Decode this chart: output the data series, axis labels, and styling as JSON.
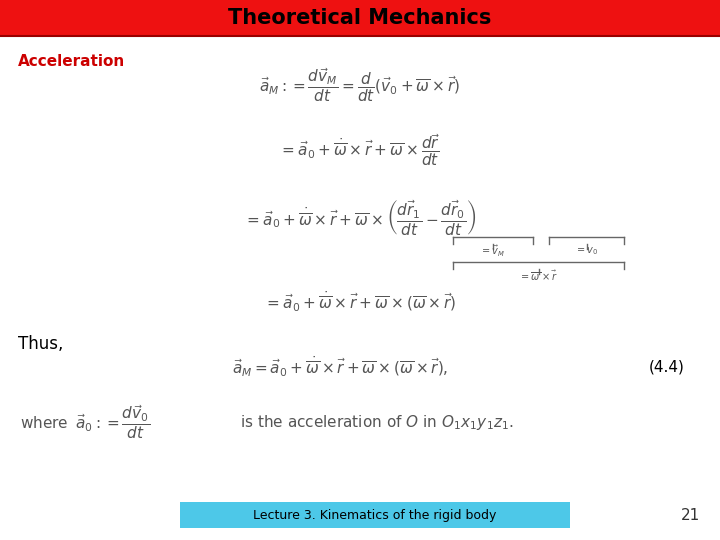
{
  "title": "Theoretical Mechanics",
  "title_bg_color": "#EE1111",
  "title_text_color": "#000000",
  "title_fontsize": 15,
  "slide_bg_color": "#FFFFFF",
  "accent_color": "#CC0000",
  "footer_bg_color": "#4DC8E8",
  "footer_text": "Lecture 3. Kinematics of the rigid body",
  "footer_page": "21",
  "section_label": "Acceleration",
  "section_label_color": "#CC0000",
  "eq_color": "#555555",
  "thus_color": "#000000",
  "eq_num": "(4.4)"
}
